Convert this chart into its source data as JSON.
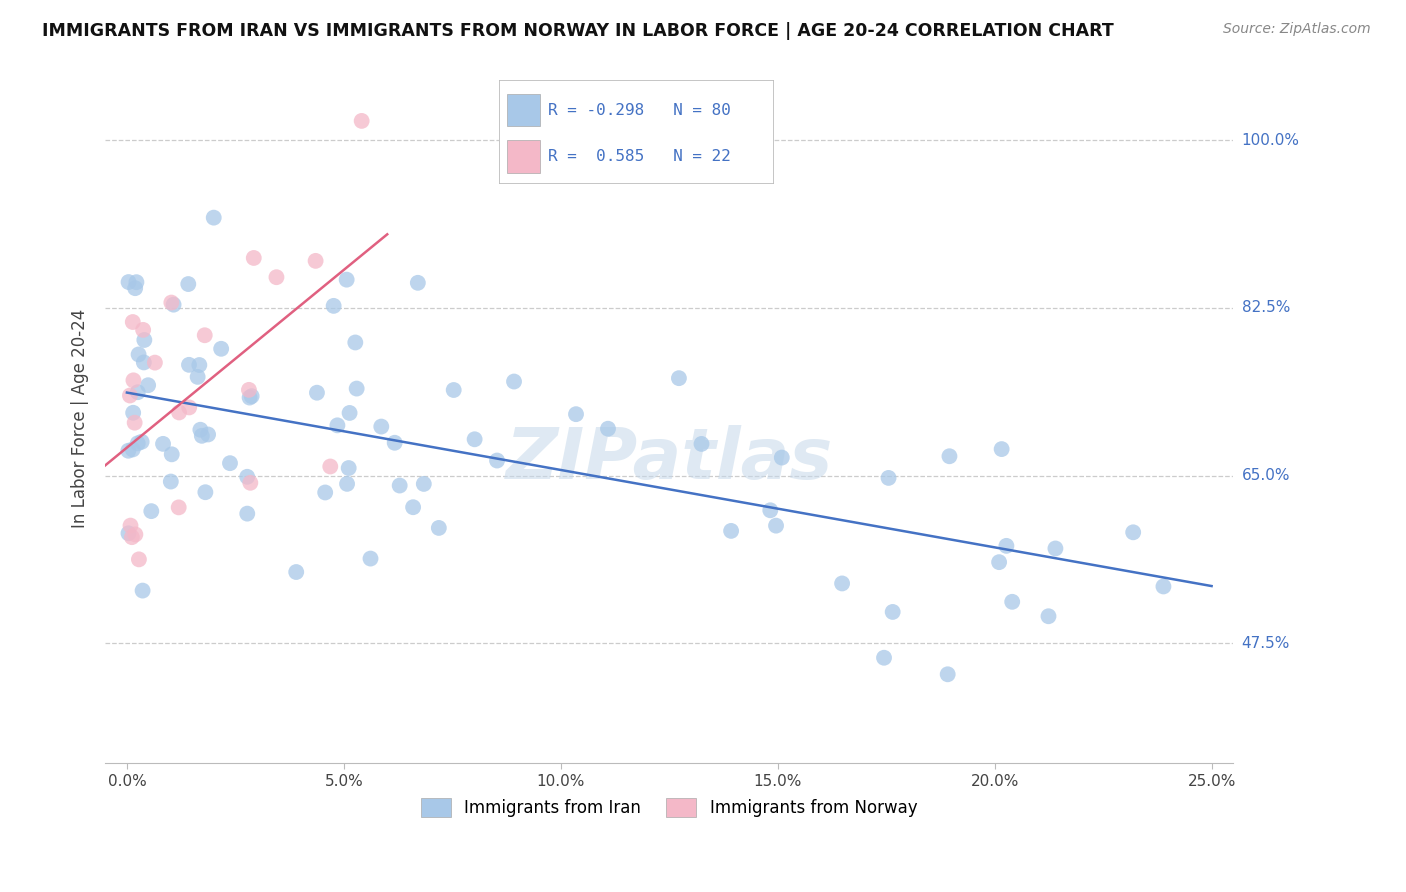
{
  "title": "IMMIGRANTS FROM IRAN VS IMMIGRANTS FROM NORWAY IN LABOR FORCE | AGE 20-24 CORRELATION CHART",
  "source": "Source: ZipAtlas.com",
  "ylabel": "In Labor Force | Age 20-24",
  "xlim": [
    0.0,
    25.0
  ],
  "ylim": [
    35.0,
    107.0
  ],
  "y_ticks": [
    47.5,
    65.0,
    82.5,
    100.0
  ],
  "x_ticks": [
    0.0,
    5.0,
    10.0,
    15.0,
    20.0,
    25.0
  ],
  "iran_color": "#a8c8e8",
  "norway_color": "#f4b8c8",
  "iran_line_color": "#4472c4",
  "norway_line_color": "#e06080",
  "iran_R": -0.298,
  "iran_N": 80,
  "norway_R": 0.585,
  "norway_N": 22,
  "watermark": "ZIPatlas",
  "background_color": "#ffffff",
  "grid_color": "#cccccc",
  "legend_label_iran": "Immigrants from Iran",
  "legend_label_norway": "Immigrants from Norway"
}
